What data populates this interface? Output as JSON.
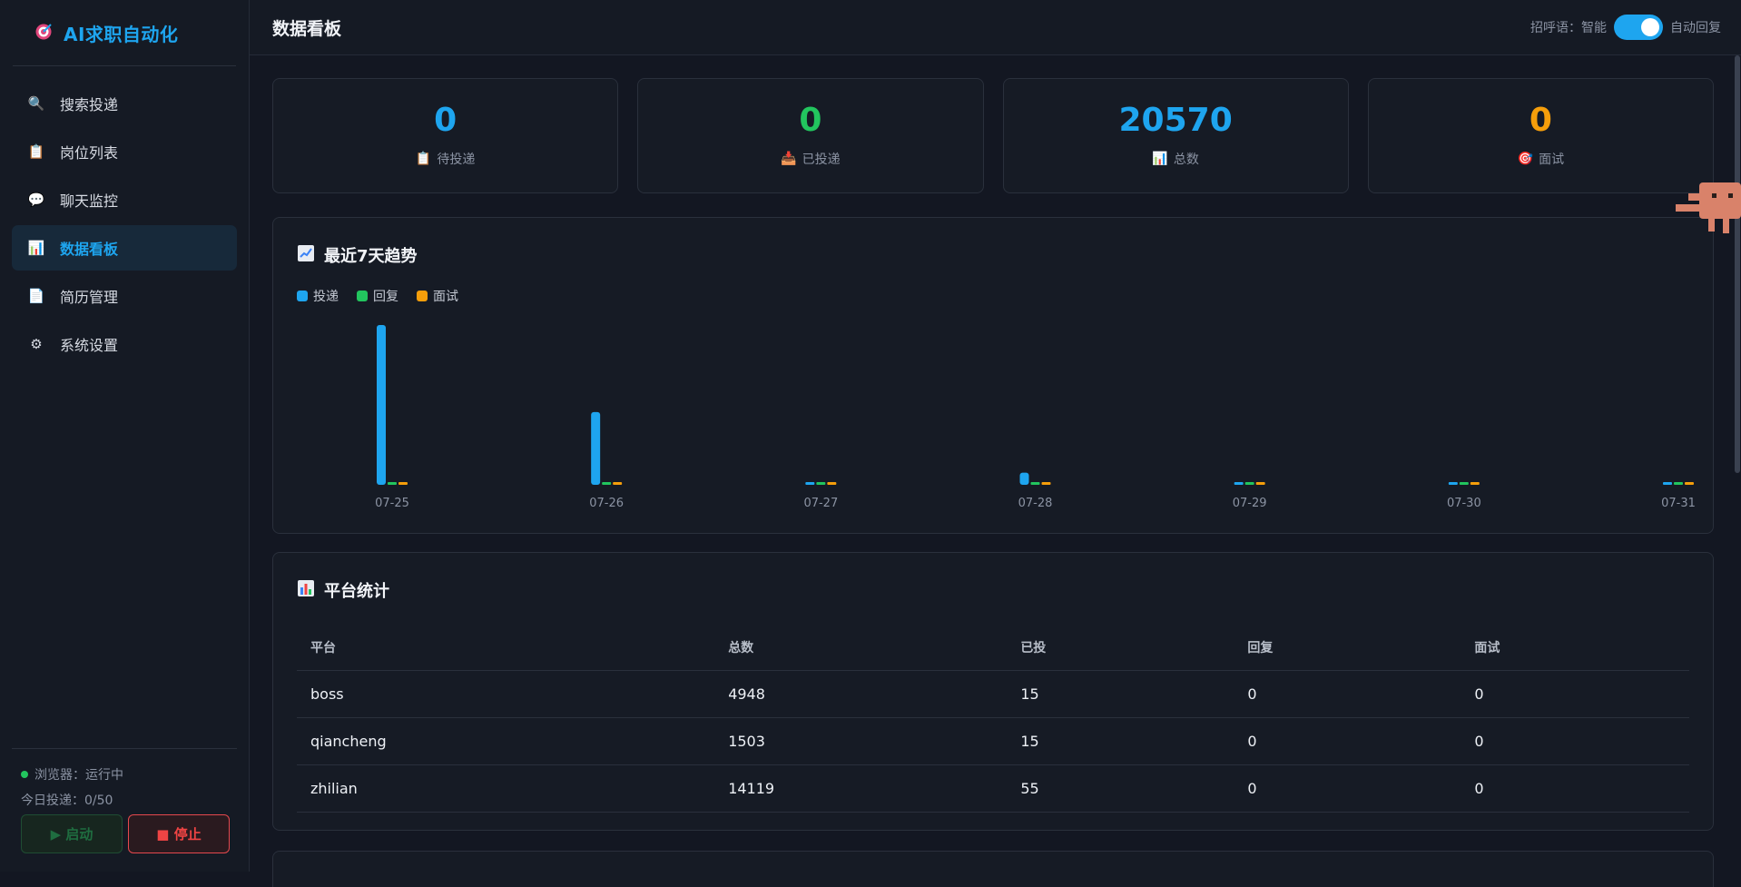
{
  "brand": {
    "name": "AI求职自动化",
    "icon": "target-icon"
  },
  "sidebar": {
    "items": [
      {
        "label": "搜索投递",
        "icon": "search-icon",
        "glyph": "🔍",
        "active": false
      },
      {
        "label": "岗位列表",
        "icon": "clipboard-icon",
        "glyph": "📋",
        "active": false
      },
      {
        "label": "聊天监控",
        "icon": "speech-bubble-icon",
        "glyph": "💬",
        "active": false
      },
      {
        "label": "数据看板",
        "icon": "bar-chart-icon",
        "glyph": "📊",
        "active": true
      },
      {
        "label": "简历管理",
        "icon": "document-icon",
        "glyph": "📄",
        "active": false
      },
      {
        "label": "系统设置",
        "icon": "gear-icon",
        "glyph": "⚙",
        "active": false
      }
    ],
    "browser_status": "浏览器：运行中",
    "today_sent": "今日投递：0/50",
    "start_label": "▶ 启动",
    "stop_label": "■ 停止"
  },
  "header": {
    "title": "数据看板",
    "greeting_label": "招呼语：智能",
    "auto_reply_label": "自动回复",
    "auto_reply_on": true
  },
  "stats": [
    {
      "value": "0",
      "label": "待投递",
      "icon": "clipboard-icon",
      "color": "#1ea5ef"
    },
    {
      "value": "0",
      "label": "已投递",
      "icon": "inbox-icon",
      "color": "#22c55e"
    },
    {
      "value": "20570",
      "label": "总数",
      "icon": "bar-chart-icon",
      "color": "#1ea5ef"
    },
    {
      "value": "0",
      "label": "面试",
      "icon": "target-icon",
      "color": "#f59e0b"
    }
  ],
  "trend": {
    "title": "最近7天趋势",
    "icon": "line-chart-icon"
  },
  "chart_data": {
    "type": "bar",
    "categories": [
      "07-25",
      "07-26",
      "07-27",
      "07-28",
      "07-29",
      "07-30",
      "07-31"
    ],
    "series": [
      {
        "name": "投递",
        "color": "#1ea5ef",
        "values": [
          145,
          66,
          0,
          11,
          0,
          0,
          0
        ]
      },
      {
        "name": "回复",
        "color": "#22c55e",
        "values": [
          0,
          0,
          0,
          0,
          0,
          0,
          0
        ]
      },
      {
        "name": "面试",
        "color": "#f59e0b",
        "values": [
          0,
          0,
          0,
          0,
          0,
          0,
          0
        ]
      }
    ],
    "legend": "top-left",
    "grid": false
  },
  "platform": {
    "title": "平台统计",
    "icon": "bar-chart-icon",
    "columns": [
      "平台",
      "总数",
      "已投",
      "回复",
      "面试"
    ],
    "rows": [
      [
        "boss",
        "4948",
        "15",
        "0",
        "0"
      ],
      [
        "qiancheng",
        "1503",
        "15",
        "0",
        "0"
      ],
      [
        "zhilian",
        "14119",
        "55",
        "0",
        "0"
      ]
    ]
  }
}
